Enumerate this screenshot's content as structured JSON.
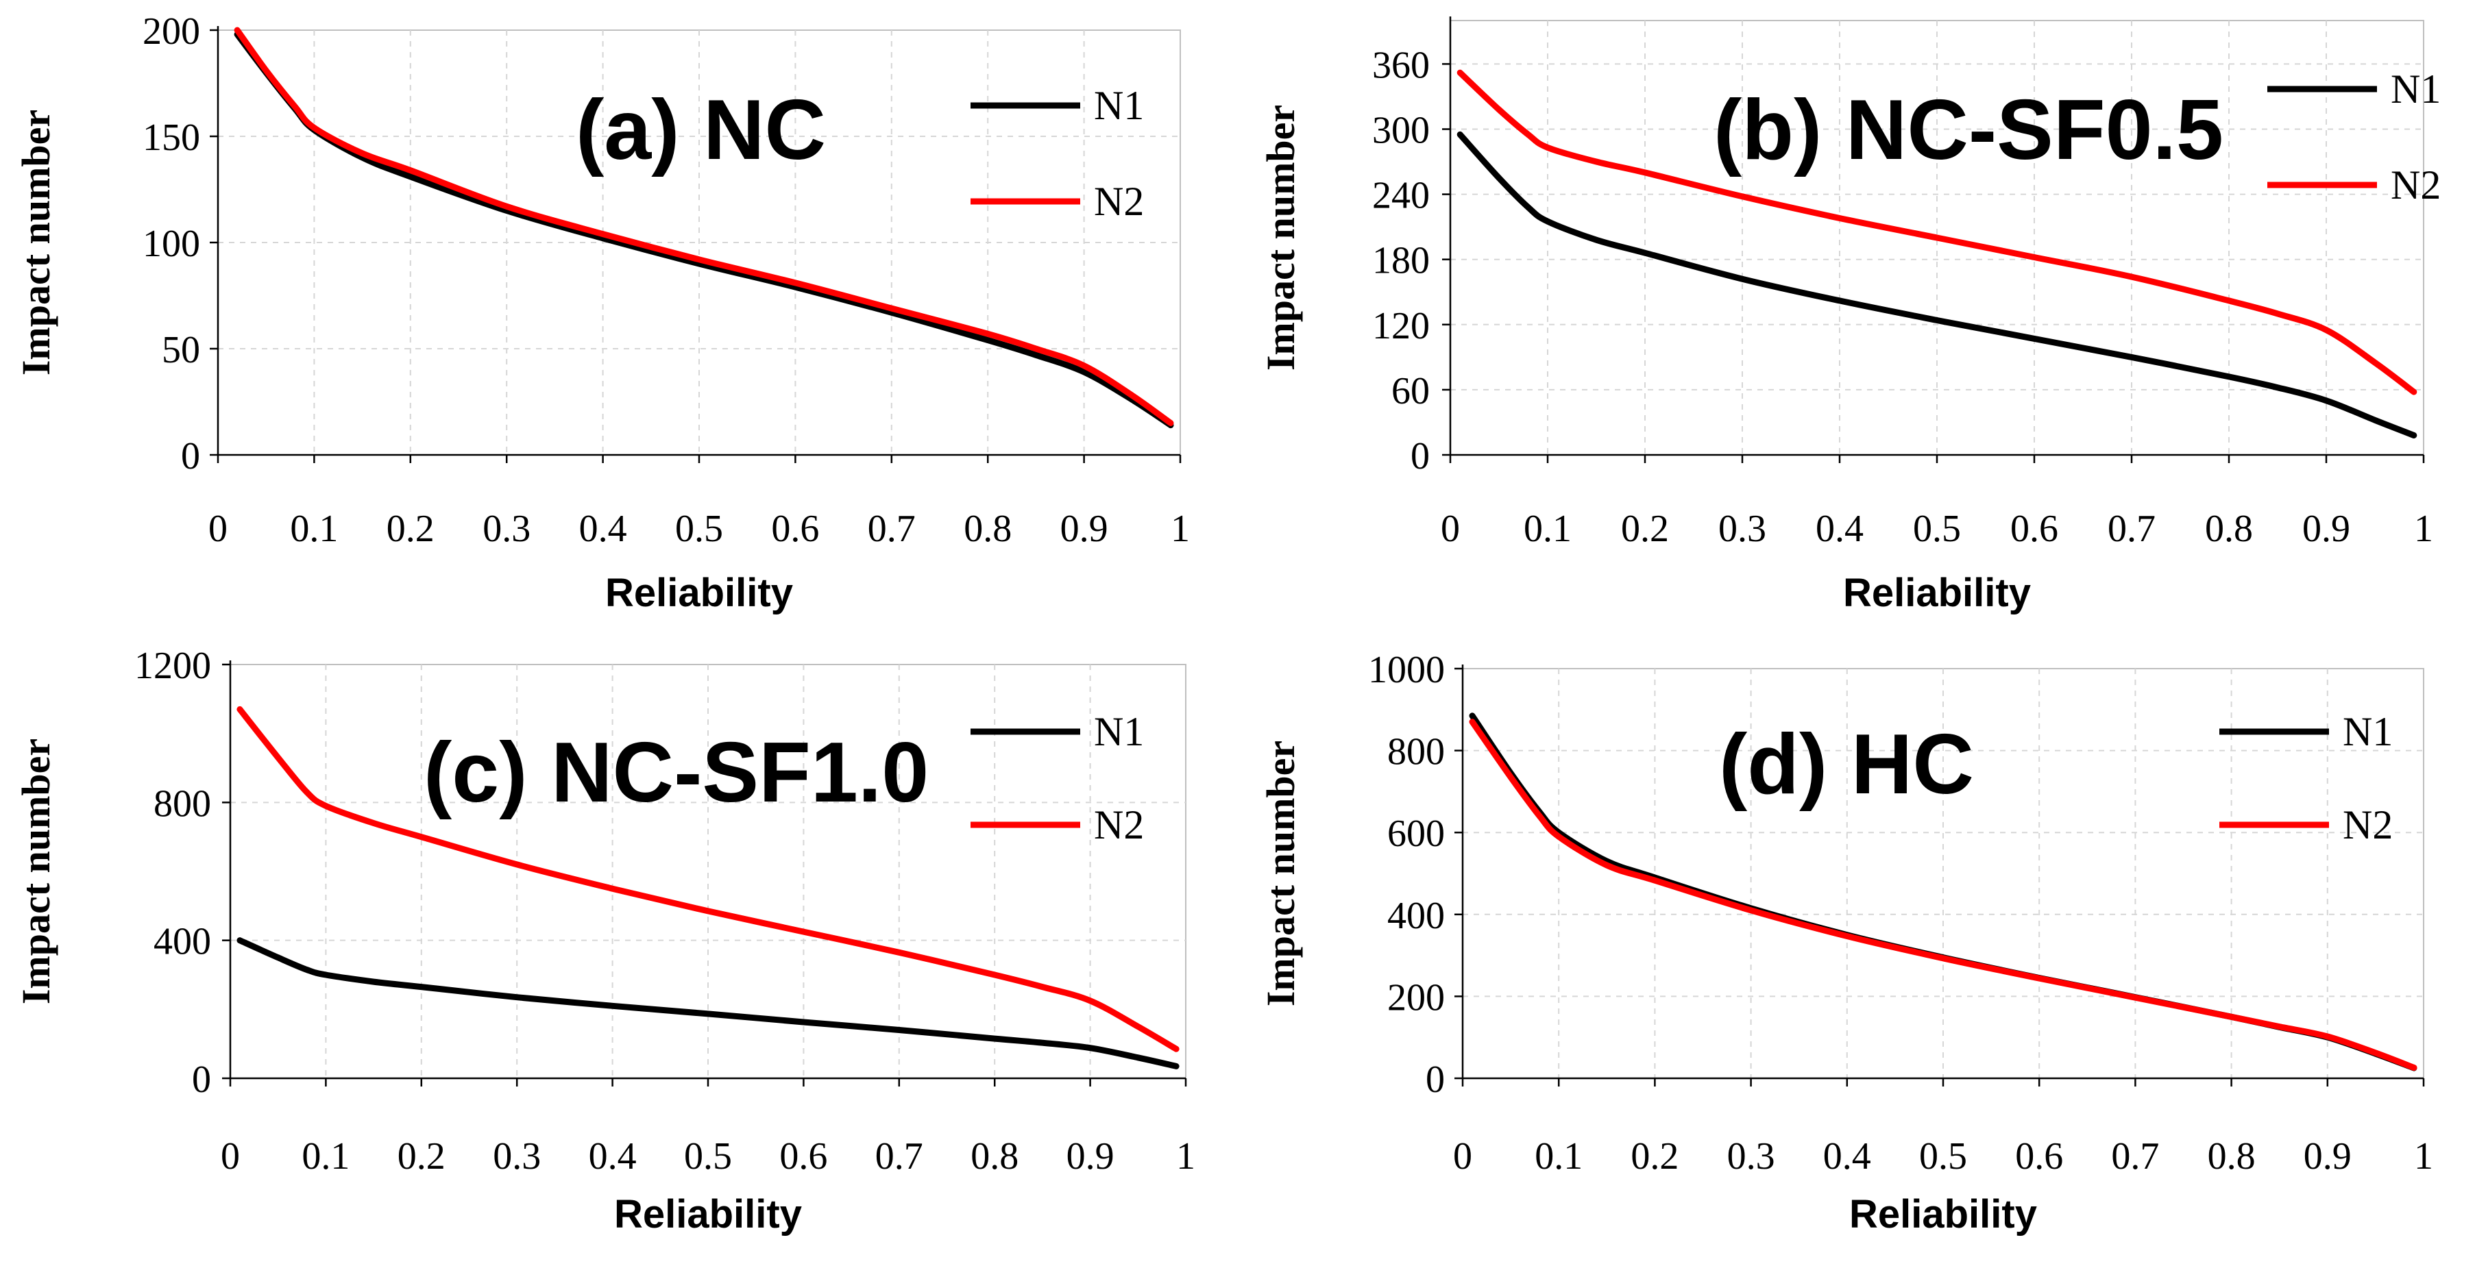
{
  "colors": {
    "N1": "#000000",
    "N2": "#ff0000"
  },
  "chart_data": [
    {
      "type": "line",
      "title": "(a) NC",
      "xlabel": "Reliability",
      "ylabel": "Impact number",
      "xlim": [
        0,
        1
      ],
      "ylim": [
        0,
        200
      ],
      "xticks": [
        "0",
        "0.1",
        "0.2",
        "0.3",
        "0.4",
        "0.5",
        "0.6",
        "0.7",
        "0.8",
        "0.9",
        "1"
      ],
      "yticks": [
        "0",
        "50",
        "100",
        "150",
        "200"
      ],
      "grid": true,
      "legend": "top-right",
      "series": [
        {
          "name": "N1",
          "x": [
            0.02,
            0.05,
            0.08,
            0.1,
            0.15,
            0.2,
            0.3,
            0.4,
            0.5,
            0.6,
            0.7,
            0.8,
            0.85,
            0.9,
            0.95,
            0.99
          ],
          "y": [
            198,
            180,
            163,
            153,
            140,
            131,
            115,
            102,
            90,
            79,
            67,
            54,
            47,
            39,
            26,
            14
          ]
        },
        {
          "name": "N2",
          "x": [
            0.02,
            0.05,
            0.08,
            0.1,
            0.15,
            0.2,
            0.3,
            0.4,
            0.5,
            0.6,
            0.7,
            0.8,
            0.85,
            0.9,
            0.95,
            0.99
          ],
          "y": [
            200,
            181,
            164,
            154,
            142,
            134,
            117,
            104,
            92,
            81,
            69,
            57,
            50,
            42,
            28,
            15
          ]
        }
      ]
    },
    {
      "type": "line",
      "title": "(b) NC-SF0.5",
      "xlabel": "Reliability",
      "ylabel": "Impact number",
      "xlim": [
        0,
        1
      ],
      "ylim": [
        0,
        400
      ],
      "xticks": [
        "0",
        "0.1",
        "0.2",
        "0.3",
        "0.4",
        "0.5",
        "0.6",
        "0.7",
        "0.8",
        "0.9",
        "1"
      ],
      "yticks": [
        "0",
        "60",
        "120",
        "180",
        "240",
        "300",
        "360"
      ],
      "grid": true,
      "legend": "top-right",
      "series": [
        {
          "name": "N1",
          "x": [
            0.01,
            0.05,
            0.08,
            0.1,
            0.15,
            0.2,
            0.3,
            0.4,
            0.5,
            0.6,
            0.7,
            0.8,
            0.85,
            0.9,
            0.95,
            0.99
          ],
          "y": [
            295,
            255,
            228,
            215,
            198,
            186,
            162,
            142,
            124,
            107,
            90,
            72,
            62,
            50,
            32,
            18
          ]
        },
        {
          "name": "N2",
          "x": [
            0.01,
            0.05,
            0.08,
            0.1,
            0.15,
            0.2,
            0.3,
            0.4,
            0.5,
            0.6,
            0.7,
            0.8,
            0.85,
            0.9,
            0.95,
            0.99
          ],
          "y": [
            352,
            318,
            295,
            283,
            270,
            260,
            238,
            218,
            200,
            182,
            164,
            142,
            130,
            115,
            85,
            58
          ]
        }
      ]
    },
    {
      "type": "line",
      "title": "(c) NC-SF1.0",
      "xlabel": "Reliability",
      "ylabel": "Impact number",
      "xlim": [
        0,
        1
      ],
      "ylim": [
        0,
        1200
      ],
      "xticks": [
        "0",
        "0.1",
        "0.2",
        "0.3",
        "0.4",
        "0.5",
        "0.6",
        "0.7",
        "0.8",
        "0.9",
        "1"
      ],
      "yticks": [
        "0",
        "400",
        "800",
        "1200"
      ],
      "grid": true,
      "legend": "top-right",
      "series": [
        {
          "name": "N1",
          "x": [
            0.01,
            0.05,
            0.08,
            0.1,
            0.15,
            0.2,
            0.3,
            0.4,
            0.5,
            0.6,
            0.7,
            0.8,
            0.85,
            0.9,
            0.95,
            0.99
          ],
          "y": [
            400,
            350,
            315,
            300,
            280,
            265,
            235,
            210,
            187,
            163,
            140,
            115,
            103,
            88,
            60,
            35
          ]
        },
        {
          "name": "N2",
          "x": [
            0.01,
            0.05,
            0.08,
            0.1,
            0.15,
            0.2,
            0.3,
            0.4,
            0.5,
            0.6,
            0.7,
            0.8,
            0.85,
            0.9,
            0.95,
            0.99
          ],
          "y": [
            1070,
            930,
            830,
            790,
            740,
            700,
            620,
            550,
            485,
            425,
            365,
            300,
            265,
            225,
            150,
            85
          ]
        }
      ]
    },
    {
      "type": "line",
      "title": "(d) HC",
      "xlabel": "Reliability",
      "ylabel": "Impact number",
      "xlim": [
        0,
        1
      ],
      "ylim": [
        0,
        1000
      ],
      "xticks": [
        "0",
        "0.1",
        "0.2",
        "0.3",
        "0.4",
        "0.5",
        "0.6",
        "0.7",
        "0.8",
        "0.9",
        "1"
      ],
      "yticks": [
        "0",
        "200",
        "400",
        "600",
        "800",
        "1000"
      ],
      "grid": true,
      "legend": "top-right",
      "series": [
        {
          "name": "N1",
          "x": [
            0.01,
            0.05,
            0.08,
            0.1,
            0.15,
            0.2,
            0.3,
            0.4,
            0.5,
            0.6,
            0.7,
            0.8,
            0.85,
            0.9,
            0.95,
            0.99
          ],
          "y": [
            885,
            745,
            650,
            600,
            530,
            490,
            415,
            350,
            295,
            245,
            198,
            150,
            125,
            100,
            60,
            25
          ]
        },
        {
          "name": "N2",
          "x": [
            0.01,
            0.05,
            0.08,
            0.1,
            0.15,
            0.2,
            0.3,
            0.4,
            0.5,
            0.6,
            0.7,
            0.8,
            0.85,
            0.9,
            0.95,
            0.99
          ],
          "y": [
            870,
            735,
            640,
            590,
            520,
            483,
            410,
            347,
            293,
            244,
            197,
            150,
            126,
            102,
            62,
            26
          ]
        }
      ]
    }
  ]
}
